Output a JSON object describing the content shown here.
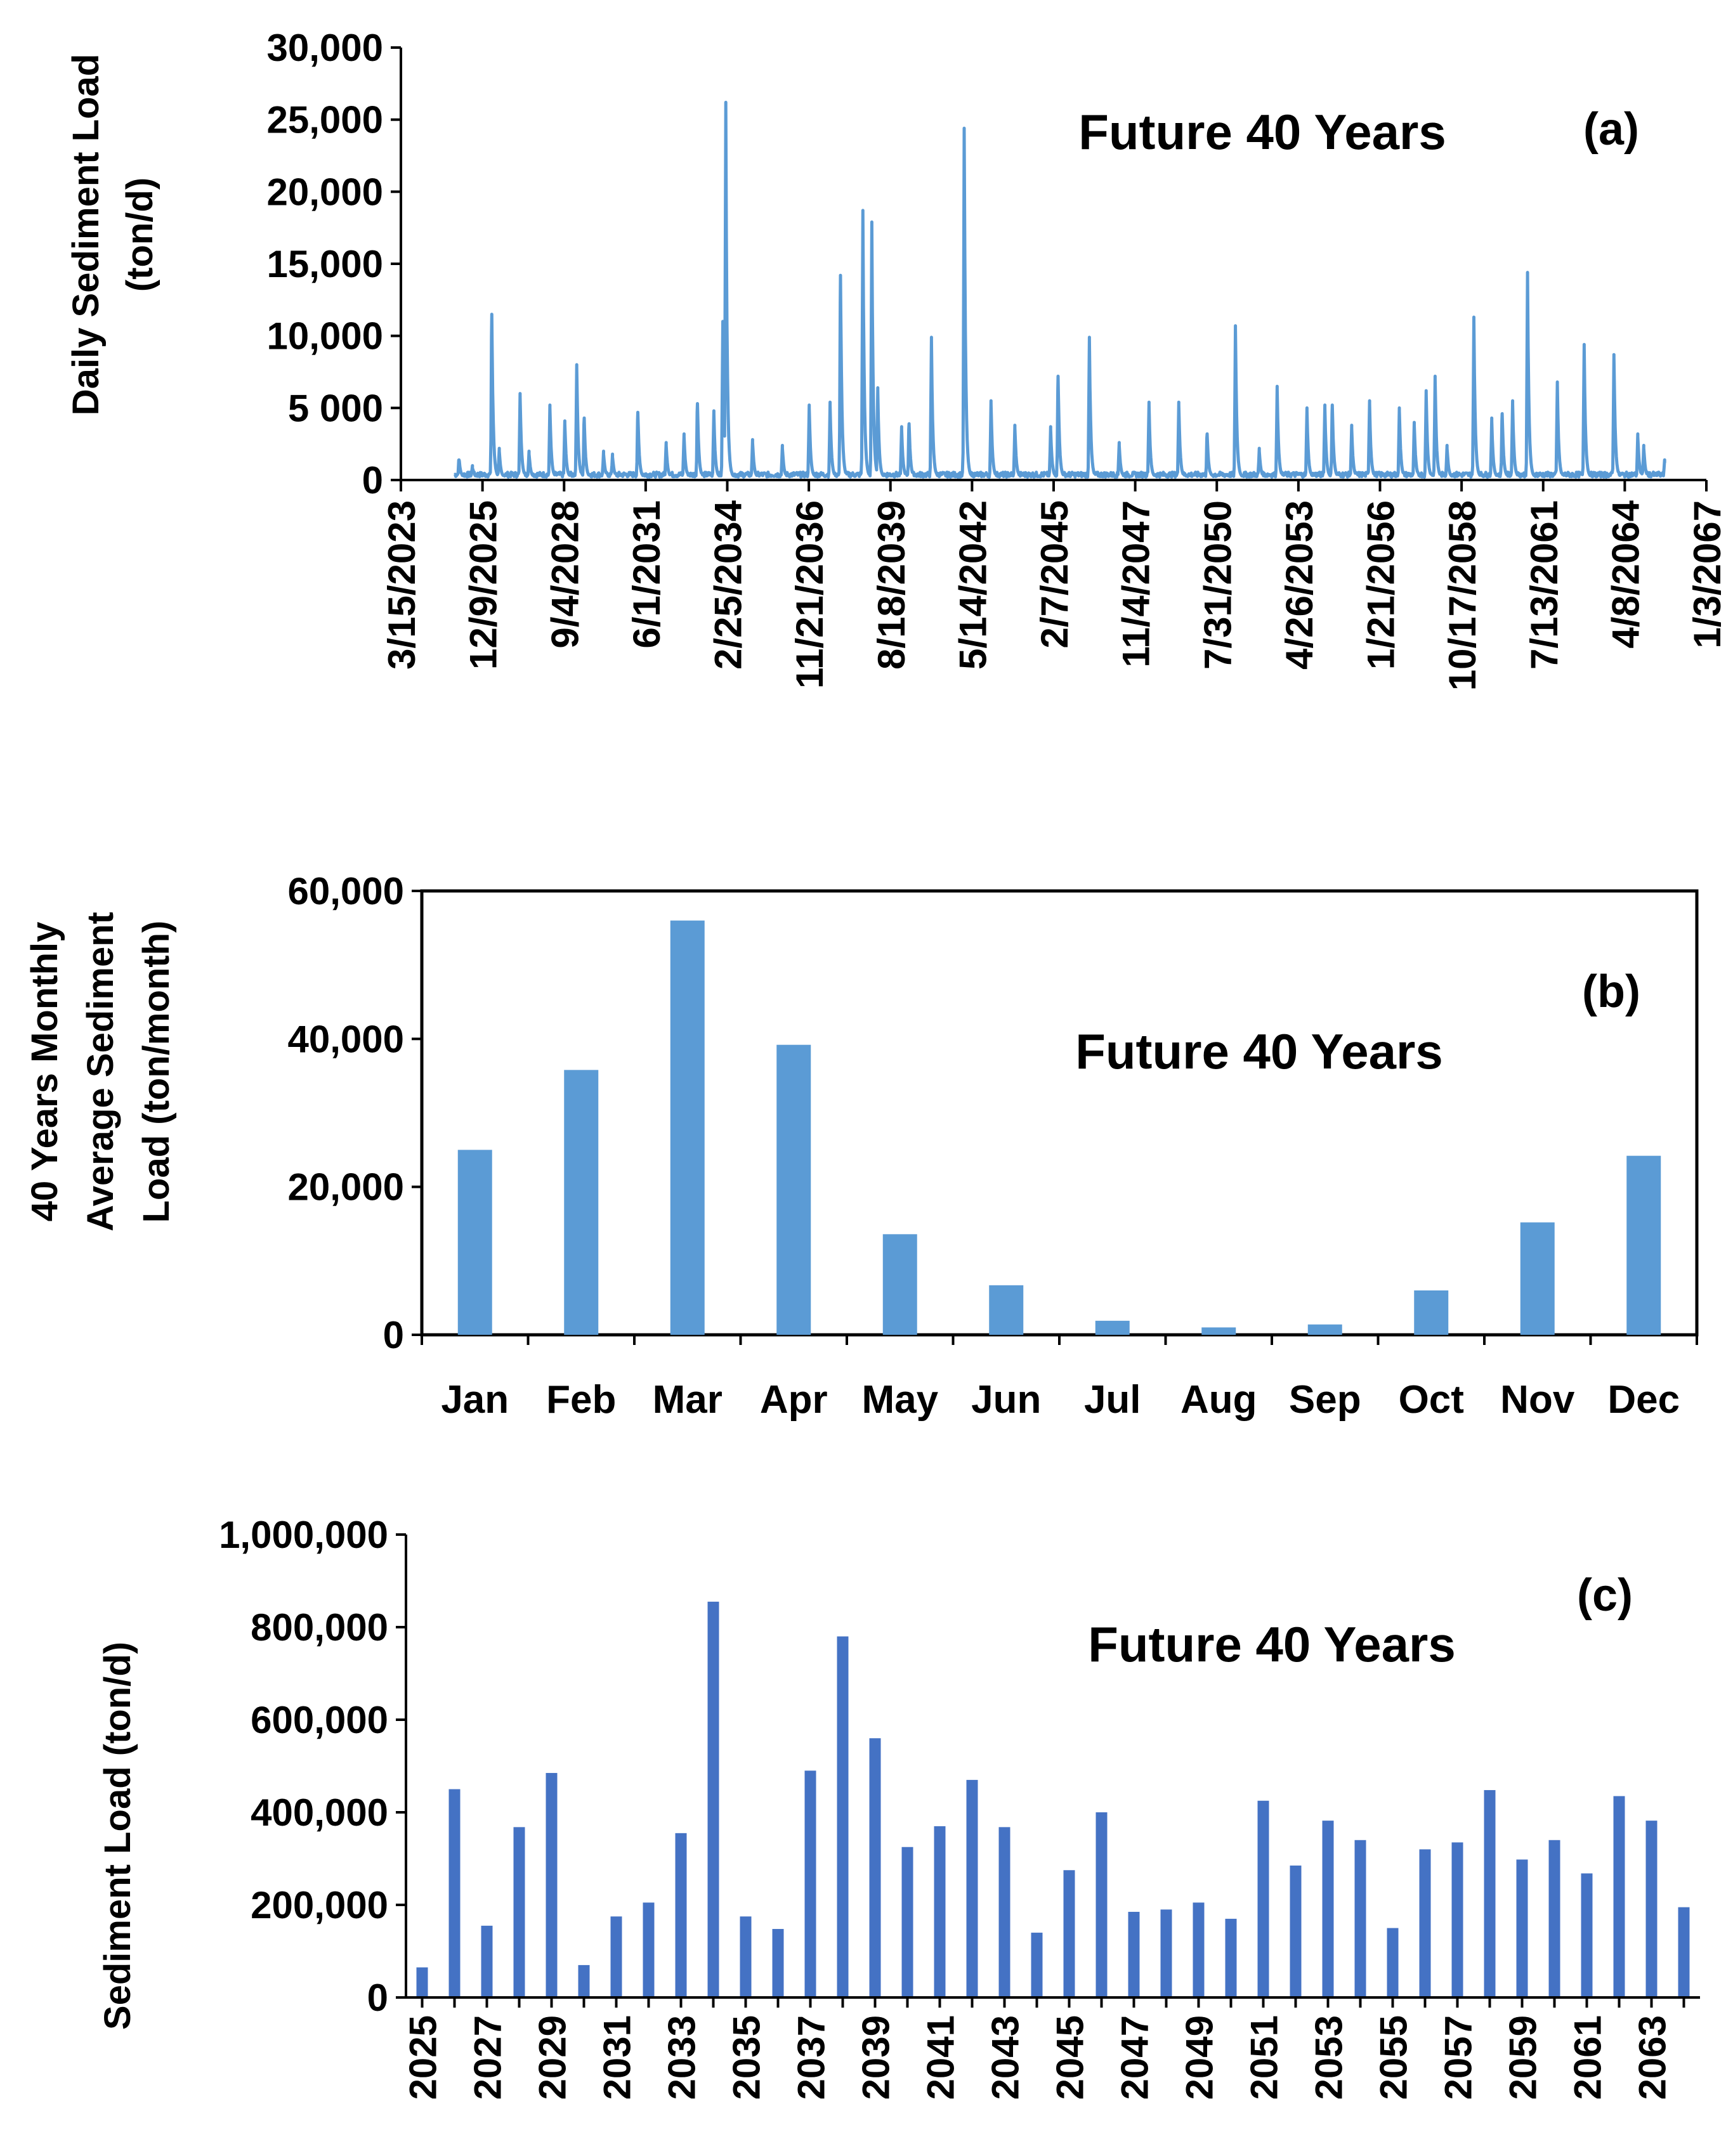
{
  "colors": {
    "series_a": "#5B9BD5",
    "series_b": "#5B9BD5",
    "series_c": "#4472C4",
    "axis": "#000000"
  },
  "chart_data": [
    {
      "id": "a",
      "type": "line",
      "panel_label": "(a)",
      "annotation": "Future 40 Years",
      "ylabel_lines": [
        "Daily Sediment Load",
        "(ton/d)"
      ],
      "ylim": [
        0,
        30000
      ],
      "yticks": [
        0,
        5000,
        10000,
        15000,
        20000,
        25000,
        30000
      ],
      "ytick_labels": [
        "0",
        "5 000",
        "10,000",
        "15,000",
        "20,000",
        "25,000",
        "30,000"
      ],
      "xtick_labels": [
        "3/15/2023",
        "12/9/2025",
        "9/4/2028",
        "6/1/2031",
        "2/25/2034",
        "11/21/2036",
        "8/18/2039",
        "5/14/2042",
        "2/7/2045",
        "11/4/2047",
        "7/31/2050",
        "4/26/2053",
        "1/21/2056",
        "10/17/2058",
        "7/13/2061",
        "4/8/2064",
        "1/3/2067"
      ],
      "xlim_years": [
        2023.2,
        2067.0
      ],
      "data_start_year": 2025.0,
      "data_end_year": 2065.0,
      "baseline": 200,
      "peaks": [
        {
          "year": 2025.15,
          "value": 1400
        },
        {
          "year": 2025.6,
          "value": 800
        },
        {
          "year": 2026.25,
          "value": 11500
        },
        {
          "year": 2026.5,
          "value": 2000
        },
        {
          "year": 2027.2,
          "value": 5800
        },
        {
          "year": 2027.5,
          "value": 1800
        },
        {
          "year": 2028.2,
          "value": 5000
        },
        {
          "year": 2028.7,
          "value": 3900
        },
        {
          "year": 2029.1,
          "value": 7800
        },
        {
          "year": 2029.35,
          "value": 4300
        },
        {
          "year": 2030.0,
          "value": 1800
        },
        {
          "year": 2030.3,
          "value": 1600
        },
        {
          "year": 2031.15,
          "value": 4700
        },
        {
          "year": 2032.1,
          "value": 2400
        },
        {
          "year": 2032.7,
          "value": 3000
        },
        {
          "year": 2033.15,
          "value": 5300
        },
        {
          "year": 2033.7,
          "value": 4600
        },
        {
          "year": 2034.0,
          "value": 10800
        },
        {
          "year": 2034.1,
          "value": 26000
        },
        {
          "year": 2035.0,
          "value": 2600
        },
        {
          "year": 2036.0,
          "value": 2200
        },
        {
          "year": 2036.9,
          "value": 5000
        },
        {
          "year": 2037.6,
          "value": 5200
        },
        {
          "year": 2037.95,
          "value": 14200
        },
        {
          "year": 2038.7,
          "value": 18500
        },
        {
          "year": 2039.0,
          "value": 17700
        },
        {
          "year": 2039.2,
          "value": 6200
        },
        {
          "year": 2040.0,
          "value": 3500
        },
        {
          "year": 2040.25,
          "value": 3900
        },
        {
          "year": 2041.0,
          "value": 9700
        },
        {
          "year": 2042.1,
          "value": 24200
        },
        {
          "year": 2043.0,
          "value": 5300
        },
        {
          "year": 2043.8,
          "value": 3600
        },
        {
          "year": 2045.0,
          "value": 3500
        },
        {
          "year": 2045.25,
          "value": 7200
        },
        {
          "year": 2046.3,
          "value": 9700
        },
        {
          "year": 2047.3,
          "value": 2400
        },
        {
          "year": 2048.3,
          "value": 5200
        },
        {
          "year": 2049.3,
          "value": 5200
        },
        {
          "year": 2050.25,
          "value": 3200
        },
        {
          "year": 2051.2,
          "value": 10500
        },
        {
          "year": 2052.0,
          "value": 2000
        },
        {
          "year": 2052.6,
          "value": 6300
        },
        {
          "year": 2053.6,
          "value": 4800
        },
        {
          "year": 2054.2,
          "value": 5000
        },
        {
          "year": 2054.45,
          "value": 5200
        },
        {
          "year": 2055.1,
          "value": 3600
        },
        {
          "year": 2055.7,
          "value": 5300
        },
        {
          "year": 2056.7,
          "value": 4800
        },
        {
          "year": 2057.2,
          "value": 3800
        },
        {
          "year": 2057.6,
          "value": 6000
        },
        {
          "year": 2057.9,
          "value": 7000
        },
        {
          "year": 2058.3,
          "value": 2200
        },
        {
          "year": 2059.2,
          "value": 11100
        },
        {
          "year": 2059.8,
          "value": 4100
        },
        {
          "year": 2060.15,
          "value": 4600
        },
        {
          "year": 2060.5,
          "value": 5300
        },
        {
          "year": 2061.0,
          "value": 14200
        },
        {
          "year": 2062.0,
          "value": 6600
        },
        {
          "year": 2062.9,
          "value": 9200
        },
        {
          "year": 2063.9,
          "value": 8500
        },
        {
          "year": 2064.7,
          "value": 3000
        },
        {
          "year": 2064.9,
          "value": 2200
        },
        {
          "year": 2065.6,
          "value": 1200
        }
      ]
    },
    {
      "id": "b",
      "type": "bar",
      "panel_label": "(b)",
      "annotation": "Future 40 Years",
      "ylabel_lines": [
        "40 Years Monthly",
        "Average Sediment",
        "Load (ton/month)"
      ],
      "ylim": [
        0,
        60000
      ],
      "yticks": [
        0,
        20000,
        40000,
        60000
      ],
      "ytick_labels": [
        "0",
        "20,000",
        "40,000",
        "60,000"
      ],
      "categories": [
        "Jan",
        "Feb",
        "Mar",
        "Apr",
        "May",
        "Jun",
        "Jul",
        "Aug",
        "Sep",
        "Oct",
        "Nov",
        "Dec"
      ],
      "values": [
        25000,
        35800,
        56000,
        39200,
        13600,
        6700,
        1900,
        1000,
        1400,
        6000,
        15200,
        24200
      ]
    },
    {
      "id": "c",
      "type": "bar",
      "panel_label": "(c)",
      "annotation": "Future 40 Years",
      "ylabel_lines": [
        "Sediment Load (ton/d)"
      ],
      "ylim": [
        0,
        1000000
      ],
      "yticks": [
        0,
        200000,
        400000,
        600000,
        800000,
        1000000
      ],
      "ytick_labels": [
        "0",
        "200,000",
        "400,000",
        "600,000",
        "800,000",
        "1,000,000"
      ],
      "categories": [
        "2025",
        "2026",
        "2027",
        "2028",
        "2029",
        "2030",
        "2031",
        "2032",
        "2033",
        "2034",
        "2035",
        "2036",
        "2037",
        "2038",
        "2039",
        "2040",
        "2041",
        "2042",
        "2043",
        "2044",
        "2045",
        "2046",
        "2047",
        "2048",
        "2049",
        "2050",
        "2051",
        "2052",
        "2053",
        "2054",
        "2055",
        "2056",
        "2057",
        "2058",
        "2059",
        "2060",
        "2061",
        "2062",
        "2063",
        "2064"
      ],
      "xtick_labels": [
        "2025",
        "",
        "2027",
        "",
        "2029",
        "",
        "2031",
        "",
        "2033",
        "",
        "2035",
        "",
        "2037",
        "",
        "2039",
        "",
        "2041",
        "",
        "2043",
        "",
        "2045",
        "",
        "2047",
        "",
        "2049",
        "",
        "2051",
        "",
        "2053",
        "",
        "2055",
        "",
        "2057",
        "",
        "2059",
        "",
        "2061",
        "",
        "2063",
        ""
      ],
      "values": [
        65000,
        450000,
        155000,
        368000,
        485000,
        70000,
        175000,
        205000,
        355000,
        855000,
        175000,
        148000,
        490000,
        780000,
        560000,
        325000,
        370000,
        470000,
        368000,
        140000,
        275000,
        400000,
        185000,
        190000,
        205000,
        170000,
        425000,
        285000,
        382000,
        340000,
        150000,
        320000,
        335000,
        448000,
        298000,
        340000,
        268000,
        435000,
        382000,
        195000
      ]
    }
  ]
}
